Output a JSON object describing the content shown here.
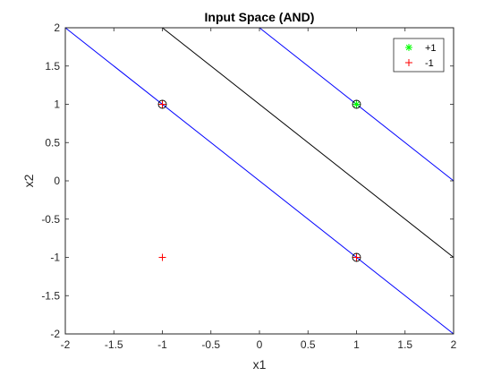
{
  "chart_data": {
    "type": "scatter",
    "title": "Input Space (AND)",
    "xlabel": "x1",
    "ylabel": "x2",
    "xlim": [
      -2,
      2
    ],
    "ylim": [
      -2,
      2
    ],
    "xticks": [
      "-2",
      "-1.5",
      "-1",
      "-0.5",
      "0",
      "0.5",
      "1",
      "1.5",
      "2"
    ],
    "yticks": [
      "-2",
      "-1.5",
      "-1",
      "-0.5",
      "0",
      "0.5",
      "1",
      "1.5",
      "2"
    ],
    "grid": false,
    "legend_position": "top-right",
    "series": [
      {
        "name": "+1",
        "marker": "asterisk",
        "color": "#00ff00",
        "points": [
          [
            1,
            1
          ]
        ]
      },
      {
        "name": "-1",
        "marker": "plus",
        "color": "#ff0000",
        "points": [
          [
            -1,
            1
          ],
          [
            -1,
            -1
          ],
          [
            1,
            -1
          ]
        ]
      }
    ],
    "circled_points": [
      [
        -1,
        1
      ],
      [
        1,
        1
      ],
      [
        1,
        -1
      ]
    ],
    "lines": [
      {
        "color": "#000000",
        "description": "decision boundary",
        "points": [
          [
            -1,
            2
          ],
          [
            2,
            -1
          ]
        ]
      },
      {
        "color": "#0000ff",
        "description": "margin",
        "points": [
          [
            -2,
            2
          ],
          [
            2,
            -2
          ]
        ]
      },
      {
        "color": "#0000ff",
        "description": "margin",
        "points": [
          [
            0,
            2
          ],
          [
            2,
            0
          ]
        ]
      }
    ]
  }
}
